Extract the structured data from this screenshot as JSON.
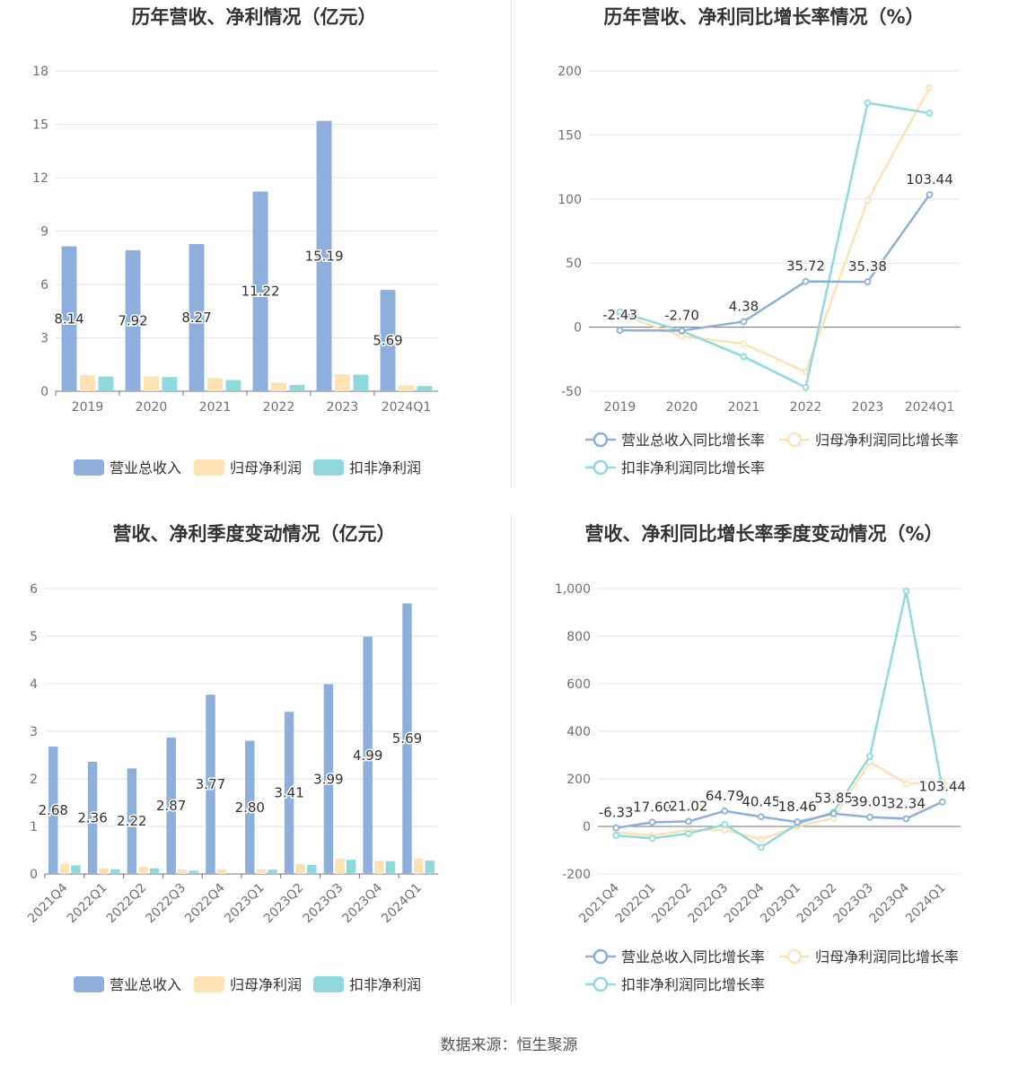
{
  "source": "数据来源：恒生聚源",
  "chart_data": [
    {
      "type": "bar",
      "title": "历年营收、净利情况（亿元）",
      "categories": [
        "2019",
        "2020",
        "2021",
        "2022",
        "2023",
        "2024Q1"
      ],
      "ylim": [
        0,
        18
      ],
      "yticks": [
        0,
        3,
        6,
        9,
        12,
        15,
        18
      ],
      "grid": true,
      "legend_position": "bottom",
      "series": [
        {
          "name": "营业总收入",
          "color": "#8eaedc",
          "values": [
            8.14,
            7.92,
            8.27,
            11.22,
            15.19,
            5.69
          ],
          "labels": [
            "8.14",
            "7.92",
            "8.27",
            "11.22",
            "15.19",
            "5.69"
          ]
        },
        {
          "name": "归母净利润",
          "color": "#fde2b4",
          "values": [
            0.9,
            0.84,
            0.74,
            0.48,
            0.95,
            0.33
          ]
        },
        {
          "name": "扣非净利润",
          "color": "#8fd9dc",
          "values": [
            0.83,
            0.8,
            0.63,
            0.35,
            0.93,
            0.29
          ]
        }
      ]
    },
    {
      "type": "line",
      "title": "历年营收、净利同比增长率情况（%）",
      "categories": [
        "2019",
        "2020",
        "2021",
        "2022",
        "2023",
        "2024Q1"
      ],
      "ylim": [
        -50,
        200
      ],
      "yticks": [
        -50,
        0,
        50,
        100,
        150,
        200
      ],
      "tick_format": "plain",
      "grid": true,
      "legend_position": "bottom",
      "series": [
        {
          "name": "营业总收入同比增长率",
          "color": "#8eaedc",
          "values": [
            -2.43,
            -2.7,
            4.38,
            35.72,
            35.38,
            103.44
          ],
          "labels": [
            "-2.43",
            "-2.70",
            "4.38",
            "35.72",
            "35.38",
            "103.44"
          ]
        },
        {
          "name": "归母净利润同比增长率",
          "color": "#fde2b4",
          "values": [
            10,
            -7,
            -13,
            -35,
            99,
            187
          ]
        },
        {
          "name": "扣非净利润同比增长率",
          "color": "#8fd9dc",
          "values": [
            12,
            -3,
            -23,
            -47,
            175,
            167
          ]
        }
      ]
    },
    {
      "type": "bar",
      "title": "营收、净利季度变动情况（亿元）",
      "categories": [
        "2021Q4",
        "2022Q1",
        "2022Q2",
        "2022Q3",
        "2022Q4",
        "2023Q1",
        "2023Q2",
        "2023Q3",
        "2023Q4",
        "2024Q1"
      ],
      "ylim": [
        0,
        6
      ],
      "yticks": [
        0,
        1,
        2,
        3,
        4,
        5,
        6
      ],
      "grid": true,
      "legend_position": "bottom",
      "series": [
        {
          "name": "营业总收入",
          "color": "#8eaedc",
          "values": [
            2.68,
            2.36,
            2.22,
            2.87,
            3.77,
            2.8,
            3.41,
            3.99,
            4.99,
            5.69
          ],
          "labels": [
            "2.68",
            "2.36",
            "2.22",
            "2.87",
            "3.77",
            "2.80",
            "3.41",
            "3.99",
            "4.99",
            "5.69"
          ]
        },
        {
          "name": "归母净利润",
          "color": "#fde2b4",
          "values": [
            0.22,
            0.12,
            0.15,
            0.09,
            0.1,
            0.1,
            0.21,
            0.32,
            0.28,
            0.33
          ]
        },
        {
          "name": "扣非净利润",
          "color": "#8fd9dc",
          "values": [
            0.18,
            0.1,
            0.12,
            0.07,
            0.02,
            0.09,
            0.19,
            0.3,
            0.27,
            0.28
          ]
        }
      ]
    },
    {
      "type": "line",
      "title": "营收、净利同比增长率季度变动情况（%）",
      "categories": [
        "2021Q4",
        "2022Q1",
        "2022Q2",
        "2022Q3",
        "2022Q4",
        "2023Q1",
        "2023Q2",
        "2023Q3",
        "2023Q4",
        "2024Q1"
      ],
      "ylim": [
        -200,
        1000
      ],
      "yticks": [
        -200,
        0,
        200,
        400,
        600,
        800,
        1000
      ],
      "tick_format": "thousands",
      "grid": true,
      "legend_position": "bottom",
      "series": [
        {
          "name": "营业总收入同比增长率",
          "color": "#8eaedc",
          "values": [
            -6.33,
            17.6,
            21.02,
            64.79,
            40.45,
            18.46,
            53.85,
            39.01,
            32.34,
            103.44
          ],
          "labels": [
            "-6.33",
            "17.60",
            "21.02",
            "64.79",
            "40.45",
            "18.46",
            "53.85",
            "39.01",
            "32.34",
            "103.44"
          ]
        },
        {
          "name": "归母净利润同比增长率",
          "color": "#fde2b4",
          "values": [
            -25,
            -38,
            -15,
            -15,
            -55,
            0,
            35,
            270,
            180,
            185
          ]
        },
        {
          "name": "扣非净利润同比增长率",
          "color": "#8fd9dc",
          "values": [
            -38,
            -50,
            -30,
            8,
            -88,
            10,
            60,
            295,
            990,
            160
          ]
        }
      ]
    }
  ]
}
